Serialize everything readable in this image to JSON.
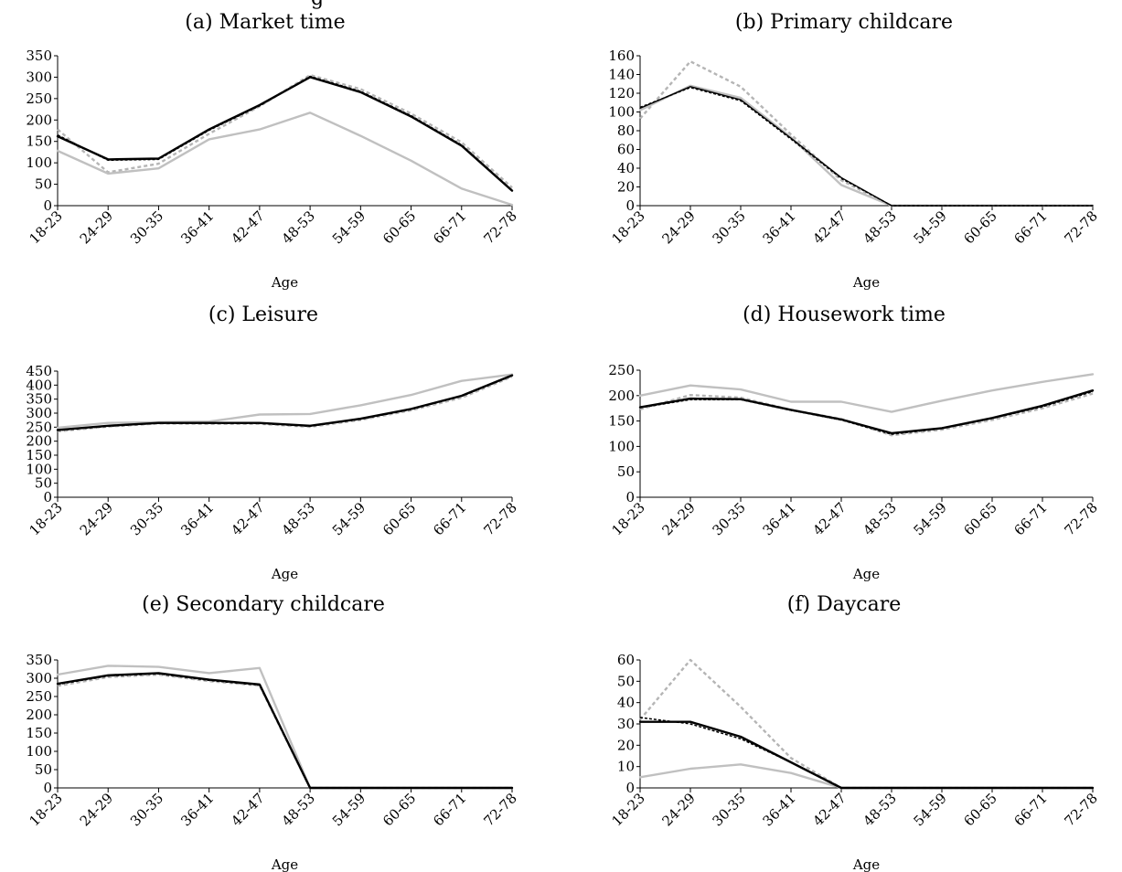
{
  "page": {
    "cut_title": "g"
  },
  "chart_data": [
    {
      "id": "a",
      "type": "line",
      "title": "(a) Market time",
      "xlabel": "Age",
      "ylabel": "",
      "categories": [
        "18-23",
        "24-29",
        "30-35",
        "36-41",
        "42-47",
        "48-53",
        "54-59",
        "60-65",
        "66-71",
        "72-78"
      ],
      "ylim": [
        0,
        350
      ],
      "yticks": [
        0,
        50,
        100,
        150,
        200,
        250,
        300,
        350
      ],
      "grid": false,
      "series": [
        {
          "color": "#000000",
          "dash": "",
          "width": 2.4,
          "values": [
            162,
            108,
            110,
            178,
            235,
            300,
            265,
            208,
            140,
            35
          ]
        },
        {
          "color": "#000000",
          "dash": "3,2",
          "width": 1.5,
          "values": [
            165,
            106,
            108,
            176,
            233,
            302,
            267,
            210,
            142,
            36
          ]
        },
        {
          "color": "#c0c0c0",
          "dash": "",
          "width": 2.4,
          "values": [
            128,
            75,
            87,
            155,
            178,
            217,
            163,
            105,
            40,
            2
          ]
        },
        {
          "color": "#b5b5b5",
          "dash": "4,3",
          "width": 2.4,
          "values": [
            178,
            78,
            98,
            168,
            232,
            305,
            272,
            215,
            148,
            42
          ]
        }
      ]
    },
    {
      "id": "b",
      "type": "line",
      "title": "(b) Primary childcare",
      "xlabel": "Age",
      "ylabel": "",
      "categories": [
        "18-23",
        "24-29",
        "30-35",
        "36-41",
        "42-47",
        "48-53",
        "54-59",
        "60-65",
        "66-71",
        "72-78"
      ],
      "ylim": [
        0,
        160
      ],
      "yticks": [
        0,
        20,
        40,
        60,
        80,
        100,
        120,
        140,
        160
      ],
      "grid": false,
      "series": [
        {
          "color": "#000000",
          "dash": "",
          "width": 1.4,
          "values": [
            104,
            127,
            113,
            72,
            30,
            0,
            0,
            0,
            0,
            0
          ]
        },
        {
          "color": "#000000",
          "dash": "3,2",
          "width": 1.4,
          "values": [
            105,
            126,
            112,
            71,
            29,
            0,
            0,
            0,
            0,
            0
          ]
        },
        {
          "color": "#c0c0c0",
          "dash": "",
          "width": 2.4,
          "values": [
            102,
            128,
            115,
            73,
            22,
            0,
            0,
            0,
            0,
            0
          ]
        },
        {
          "color": "#b5b5b5",
          "dash": "4,3",
          "width": 2.4,
          "values": [
            93,
            154,
            127,
            76,
            27,
            0,
            0,
            0,
            0,
            0
          ]
        }
      ]
    },
    {
      "id": "c",
      "type": "line",
      "title": "(c) Leisure",
      "xlabel": "Age",
      "ylabel": "",
      "categories": [
        "18-23",
        "24-29",
        "30-35",
        "36-41",
        "42-47",
        "48-53",
        "54-59",
        "60-65",
        "66-71",
        "72-78"
      ],
      "ylim": [
        0,
        450
      ],
      "yticks": [
        0,
        50,
        100,
        150,
        200,
        250,
        300,
        350,
        400,
        450
      ],
      "grid": false,
      "series": [
        {
          "color": "#000000",
          "dash": "",
          "width": 2.4,
          "values": [
            240,
            255,
            265,
            265,
            265,
            255,
            280,
            315,
            362,
            435
          ]
        },
        {
          "color": "#000000",
          "dash": "3,2",
          "width": 1.5,
          "values": [
            238,
            253,
            264,
            264,
            263,
            253,
            278,
            313,
            360,
            433
          ]
        },
        {
          "color": "#c0c0c0",
          "dash": "",
          "width": 2.4,
          "values": [
            248,
            265,
            268,
            270,
            295,
            297,
            328,
            365,
            415,
            438
          ]
        },
        {
          "color": "#b5b5b5",
          "dash": "4,3",
          "width": 2.4,
          "values": [
            235,
            252,
            263,
            262,
            262,
            251,
            276,
            310,
            355,
            430
          ]
        }
      ]
    },
    {
      "id": "d",
      "type": "line",
      "title": "(d) Housework time",
      "xlabel": "Age",
      "ylabel": "",
      "categories": [
        "18-23",
        "24-29",
        "30-35",
        "36-41",
        "42-47",
        "48-53",
        "54-59",
        "60-65",
        "66-71",
        "72-78"
      ],
      "ylim": [
        0,
        250
      ],
      "yticks": [
        0,
        50,
        100,
        150,
        200,
        250
      ],
      "grid": false,
      "series": [
        {
          "color": "#000000",
          "dash": "",
          "width": 2.4,
          "values": [
            177,
            194,
            193,
            172,
            153,
            126,
            136,
            156,
            180,
            210
          ]
        },
        {
          "color": "#000000",
          "dash": "3,2",
          "width": 1.5,
          "values": [
            176,
            192,
            192,
            171,
            152,
            124,
            135,
            155,
            178,
            208
          ]
        },
        {
          "color": "#c0c0c0",
          "dash": "",
          "width": 2.4,
          "values": [
            200,
            220,
            212,
            188,
            188,
            168,
            190,
            210,
            227,
            242
          ]
        },
        {
          "color": "#b5b5b5",
          "dash": "4,3",
          "width": 2.4,
          "values": [
            173,
            201,
            196,
            172,
            154,
            122,
            133,
            152,
            175,
            204
          ]
        }
      ]
    },
    {
      "id": "e",
      "type": "line",
      "title": "(e) Secondary childcare",
      "xlabel": "Age",
      "ylabel": "",
      "categories": [
        "18-23",
        "24-29",
        "30-35",
        "36-41",
        "42-47",
        "48-53",
        "54-59",
        "60-65",
        "66-71",
        "72-78"
      ],
      "ylim": [
        0,
        350
      ],
      "yticks": [
        0,
        50,
        100,
        150,
        200,
        250,
        300,
        350
      ],
      "grid": false,
      "series": [
        {
          "color": "#000000",
          "dash": "",
          "width": 2.4,
          "values": [
            285,
            308,
            314,
            296,
            283,
            0,
            0,
            0,
            0,
            0
          ]
        },
        {
          "color": "#000000",
          "dash": "3,2",
          "width": 1.5,
          "values": [
            283,
            306,
            312,
            294,
            281,
            0,
            0,
            0,
            0,
            0
          ]
        },
        {
          "color": "#c0c0c0",
          "dash": "",
          "width": 2.4,
          "values": [
            310,
            334,
            331,
            314,
            328,
            0,
            0,
            0,
            0,
            0
          ]
        },
        {
          "color": "#b5b5b5",
          "dash": "4,3",
          "width": 2.4,
          "values": [
            279,
            303,
            310,
            292,
            280,
            0,
            0,
            0,
            0,
            0
          ]
        }
      ]
    },
    {
      "id": "f",
      "type": "line",
      "title": "(f) Daycare",
      "xlabel": "Age",
      "ylabel": "",
      "categories": [
        "18-23",
        "24-29",
        "30-35",
        "36-41",
        "42-47",
        "48-53",
        "54-59",
        "60-65",
        "66-71",
        "72-78"
      ],
      "ylim": [
        0,
        60
      ],
      "yticks": [
        0,
        10,
        20,
        30,
        40,
        50,
        60
      ],
      "grid": false,
      "series": [
        {
          "color": "#000000",
          "dash": "",
          "width": 2.4,
          "values": [
            31,
            31,
            24,
            12,
            0,
            0,
            0,
            0,
            0,
            0
          ]
        },
        {
          "color": "#000000",
          "dash": "3,2",
          "width": 1.5,
          "values": [
            33,
            30,
            23,
            12,
            0,
            0,
            0,
            0,
            0,
            0
          ]
        },
        {
          "color": "#c0c0c0",
          "dash": "",
          "width": 2.4,
          "values": [
            5,
            9,
            11,
            7,
            0,
            0,
            0,
            0,
            0,
            0
          ]
        },
        {
          "color": "#b5b5b5",
          "dash": "4,3",
          "width": 2.4,
          "values": [
            32,
            60,
            38,
            14,
            0,
            0,
            0,
            0,
            0,
            0
          ]
        }
      ]
    }
  ]
}
